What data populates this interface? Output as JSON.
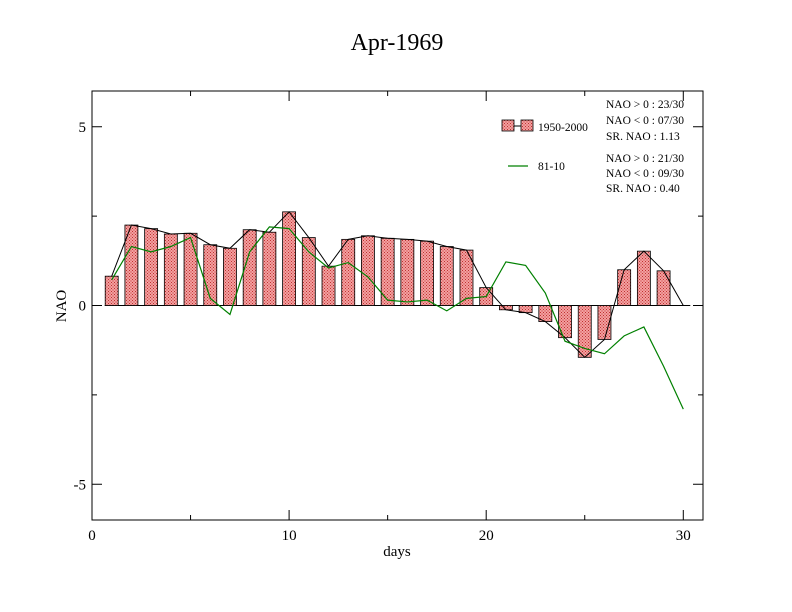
{
  "chart_data": {
    "type": "bar",
    "title": "Apr-1969",
    "xlabel": "days",
    "ylabel": "NAO",
    "xlim": [
      0,
      31
    ],
    "ylim": [
      -6,
      6
    ],
    "x_ticks": [
      0,
      10,
      20,
      30
    ],
    "x_tick_labels": [
      "0",
      "10",
      "20",
      "30"
    ],
    "y_ticks": [
      -5,
      0,
      5
    ],
    "y_tick_labels": [
      "-5",
      "0",
      "5"
    ],
    "grid": false,
    "legend_position": "top-right",
    "x": [
      1,
      2,
      3,
      4,
      5,
      6,
      7,
      8,
      9,
      10,
      11,
      12,
      13,
      14,
      15,
      16,
      17,
      18,
      19,
      20,
      21,
      22,
      23,
      24,
      25,
      26,
      27,
      28,
      29,
      30
    ],
    "series": [
      {
        "name": "1950-2000",
        "kind": "bar",
        "color": "#f08080",
        "values": [
          0.82,
          2.25,
          2.15,
          2.0,
          2.02,
          1.7,
          1.6,
          2.12,
          2.05,
          2.62,
          1.9,
          1.1,
          1.85,
          1.95,
          1.88,
          1.85,
          1.8,
          1.65,
          1.55,
          0.5,
          -0.12,
          -0.2,
          -0.45,
          -0.9,
          -1.45,
          -0.95,
          1.0,
          1.52,
          0.97,
          0.0
        ]
      },
      {
        "name": "81-10",
        "kind": "line",
        "color": "#008000",
        "values": [
          0.72,
          1.65,
          1.5,
          1.65,
          1.9,
          0.2,
          -0.25,
          1.5,
          2.2,
          2.15,
          1.5,
          1.05,
          1.2,
          0.8,
          0.15,
          0.1,
          0.15,
          -0.15,
          0.2,
          0.25,
          1.22,
          1.12,
          0.35,
          -1.0,
          -1.2,
          -1.35,
          -0.85,
          -0.6,
          -1.7,
          -2.9
        ]
      }
    ],
    "legend_entries": [
      {
        "series": "1950-2000",
        "stats": [
          "NAO > 0 :  23/30",
          "NAO < 0 :  07/30",
          "SR. NAO :  1.13"
        ]
      },
      {
        "series": "81-10",
        "stats": [
          "NAO > 0 :  21/30",
          "NAO < 0 :  09/30",
          "SR. NAO :  0.40"
        ]
      }
    ]
  }
}
